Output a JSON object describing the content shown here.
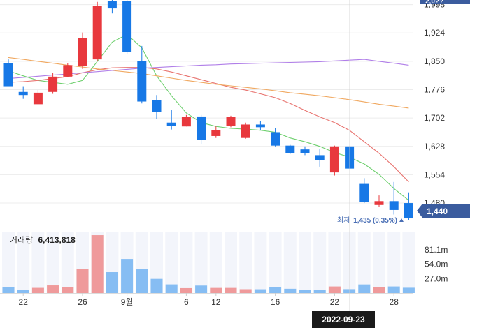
{
  "chart_data": {
    "type": "candlestick",
    "y_ticks": [
      "1,998",
      "1,924",
      "1,850",
      "1,776",
      "1,702",
      "1,628",
      "1,554",
      "1,480"
    ],
    "top_partial_tick": "2,0??",
    "ylim": [
      1420,
      2010
    ],
    "x_ticks": [
      {
        "index": 1,
        "label": "22"
      },
      {
        "index": 5,
        "label": "26"
      },
      {
        "index": 8,
        "label": "9월"
      },
      {
        "index": 12,
        "label": "6"
      },
      {
        "index": 14,
        "label": "12"
      },
      {
        "index": 18,
        "label": "16"
      },
      {
        "index": 22,
        "label": "22"
      },
      {
        "index": 26,
        "label": "28"
      }
    ],
    "candles": [
      {
        "o": 1845,
        "h": 1855,
        "l": 1785,
        "c": 1785
      },
      {
        "o": 1770,
        "h": 1785,
        "l": 1752,
        "c": 1762
      },
      {
        "o": 1738,
        "h": 1775,
        "l": 1738,
        "c": 1768
      },
      {
        "o": 1770,
        "h": 1820,
        "l": 1765,
        "c": 1810
      },
      {
        "o": 1810,
        "h": 1845,
        "l": 1808,
        "c": 1840
      },
      {
        "o": 1838,
        "h": 1925,
        "l": 1830,
        "c": 1910
      },
      {
        "o": 1855,
        "h": 2005,
        "l": 1850,
        "c": 1995
      },
      {
        "o": 2008,
        "h": 2010,
        "l": 1975,
        "c": 1988
      },
      {
        "o": 2008,
        "h": 2010,
        "l": 1870,
        "c": 1875
      },
      {
        "o": 1850,
        "h": 1890,
        "l": 1740,
        "c": 1745
      },
      {
        "o": 1748,
        "h": 1762,
        "l": 1700,
        "c": 1718
      },
      {
        "o": 1690,
        "h": 1723,
        "l": 1672,
        "c": 1682
      },
      {
        "o": 1680,
        "h": 1710,
        "l": 1680,
        "c": 1705
      },
      {
        "o": 1706,
        "h": 1710,
        "l": 1635,
        "c": 1645
      },
      {
        "o": 1655,
        "h": 1680,
        "l": 1650,
        "c": 1670
      },
      {
        "o": 1682,
        "h": 1708,
        "l": 1678,
        "c": 1705
      },
      {
        "o": 1650,
        "h": 1690,
        "l": 1648,
        "c": 1685
      },
      {
        "o": 1685,
        "h": 1695,
        "l": 1670,
        "c": 1678
      },
      {
        "o": 1665,
        "h": 1675,
        "l": 1628,
        "c": 1630
      },
      {
        "o": 1630,
        "h": 1632,
        "l": 1608,
        "c": 1610
      },
      {
        "o": 1620,
        "h": 1628,
        "l": 1605,
        "c": 1610
      },
      {
        "o": 1605,
        "h": 1622,
        "l": 1575,
        "c": 1592
      },
      {
        "o": 1560,
        "h": 1630,
        "l": 1552,
        "c": 1628
      },
      {
        "o": 1628,
        "h": 1628,
        "l": 1570,
        "c": 1570
      },
      {
        "o": 1530,
        "h": 1545,
        "l": 1480,
        "c": 1483
      },
      {
        "o": 1475,
        "h": 1500,
        "l": 1470,
        "c": 1485
      },
      {
        "o": 1485,
        "h": 1535,
        "l": 1450,
        "c": 1462
      },
      {
        "o": 1480,
        "h": 1508,
        "l": 1435,
        "c": 1440
      }
    ],
    "moving_averages": [
      {
        "color": "#6fd06f",
        "values": [
          1825,
          1812,
          1800,
          1795,
          1790,
          1800,
          1850,
          1900,
          1920,
          1885,
          1812,
          1760,
          1715,
          1690,
          1680,
          1675,
          1673,
          1670,
          1665,
          1650,
          1640,
          1628,
          1612,
          1600,
          1582,
          1555,
          1518,
          1487
        ]
      },
      {
        "color": "#e8736f",
        "values": [
          1795,
          1797,
          1800,
          1805,
          1810,
          1820,
          1828,
          1833,
          1834,
          1834,
          1830,
          1822,
          1812,
          1802,
          1792,
          1782,
          1775,
          1765,
          1755,
          1740,
          1722,
          1705,
          1690,
          1670,
          1640,
          1610,
          1575,
          1535
        ]
      },
      {
        "color": "#f0a860",
        "values": [
          1860,
          1855,
          1850,
          1845,
          1840,
          1835,
          1830,
          1826,
          1822,
          1818,
          1812,
          1806,
          1800,
          1795,
          1790,
          1786,
          1782,
          1778,
          1773,
          1768,
          1764,
          1760,
          1755,
          1750,
          1744,
          1738,
          1733,
          1728
        ]
      },
      {
        "color": "#b07ee8",
        "values": [
          1805,
          1808,
          1811,
          1814,
          1817,
          1820,
          1823,
          1826,
          1829,
          1832,
          1834,
          1836,
          1838,
          1840,
          1841,
          1843,
          1844,
          1845,
          1846,
          1847,
          1848,
          1849,
          1851,
          1853,
          1855,
          1850,
          1845,
          1840
        ]
      }
    ],
    "volume": {
      "label": "거래량",
      "value": "6,413,818",
      "ticks": [
        {
          "value": 81.1,
          "label": "81.1m"
        },
        {
          "value": 54.0,
          "label": "54.0m"
        },
        {
          "value": 27.0,
          "label": "27.0m"
        }
      ],
      "max": 120,
      "values": [
        10.7,
        5.8,
        9.7,
        14.3,
        11.2,
        44.9,
        108.2,
        39.1,
        63.8,
        45.0,
        26.5,
        16.2,
        9.2,
        14.0,
        9.6,
        9.6,
        7.2,
        7.1,
        10.8,
        8.0,
        5.9,
        5.8,
        12.3,
        7.3,
        16.1,
        11.7,
        12.3,
        9.9
      ]
    },
    "current_price": {
      "value": 1440,
      "label": "1,440"
    },
    "low_marker": {
      "label": "최저",
      "value": "1,435 (0.35%)"
    },
    "crosshair": {
      "index": 23,
      "date": "2022-09-23"
    }
  }
}
